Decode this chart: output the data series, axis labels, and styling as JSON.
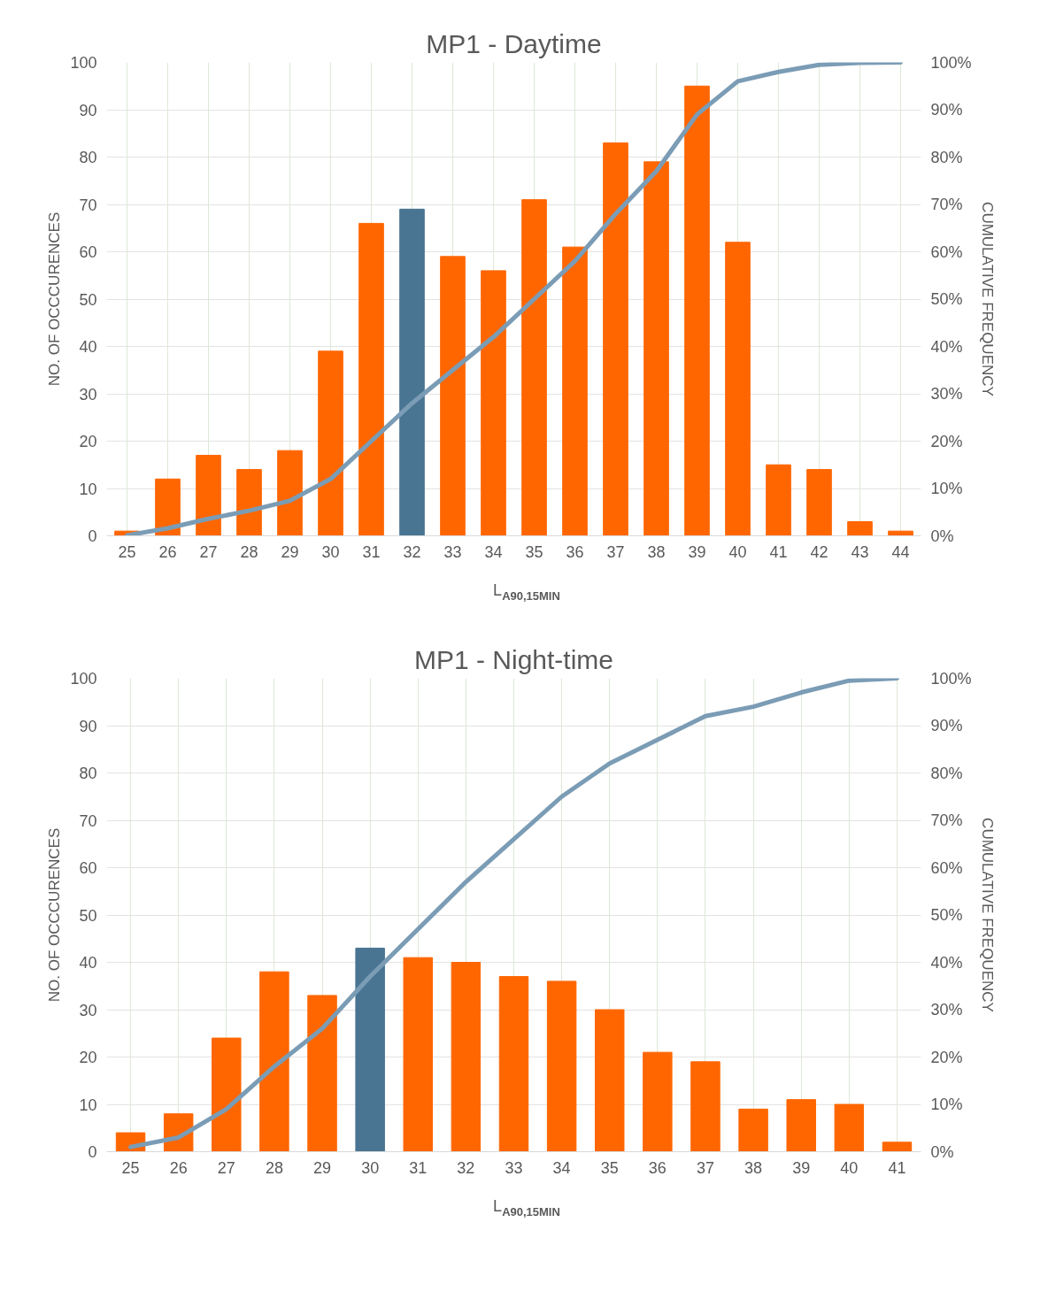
{
  "chart_data": [
    {
      "type": "bar",
      "title": "MP1 - Daytime",
      "xlabel": "L$_{A90,15MIN}$",
      "ylabel": "NO. OF OCCCURENCES",
      "y2label": "CUMULATIVE FREQUENCY",
      "grid": true,
      "categories": [
        "25",
        "26",
        "27",
        "28",
        "29",
        "30",
        "31",
        "32",
        "33",
        "34",
        "35",
        "36",
        "37",
        "38",
        "39",
        "40",
        "41",
        "42",
        "43",
        "44"
      ],
      "ylim": [
        0,
        100
      ],
      "yticks": [
        0,
        10,
        20,
        30,
        40,
        50,
        60,
        70,
        80,
        90,
        100
      ],
      "y2lim": [
        0,
        100
      ],
      "y2ticks": [
        {
          "value": 0,
          "label": "0%"
        },
        {
          "value": 10,
          "label": "10%"
        },
        {
          "value": 20,
          "label": "20%"
        },
        {
          "value": 30,
          "label": "30%"
        },
        {
          "value": 40,
          "label": "40%"
        },
        {
          "value": 50,
          "label": "50%"
        },
        {
          "value": 60,
          "label": "60%"
        },
        {
          "value": 70,
          "label": "70%"
        },
        {
          "value": 80,
          "label": "80%"
        },
        {
          "value": 90,
          "label": "90%"
        },
        {
          "value": 100,
          "label": "100%"
        }
      ],
      "series": [
        {
          "values": [
            1,
            12,
            17,
            14,
            18,
            39,
            66,
            69,
            59,
            56,
            71,
            61,
            83,
            79,
            95,
            62,
            15,
            14,
            3,
            1
          ],
          "colors": [
            "#ff6600",
            "#ff6600",
            "#ff6600",
            "#ff6600",
            "#ff6600",
            "#ff6600",
            "#ff6600",
            "#497593",
            "#ff6600",
            "#ff6600",
            "#ff6600",
            "#ff6600",
            "#ff6600",
            "#ff6600",
            "#ff6600",
            "#ff6600",
            "#ff6600",
            "#ff6600",
            "#ff6600",
            "#ff6600"
          ]
        },
        {
          "type": "line",
          "axis": "y2",
          "color": "#7b9cb5",
          "values": [
            0.1,
            1.6,
            3.6,
            5.3,
            7.4,
            12,
            20,
            28,
            35,
            42,
            50,
            58,
            68,
            77,
            89,
            96,
            98,
            99.5,
            99.9,
            100
          ]
        }
      ]
    },
    {
      "type": "bar",
      "title": "MP1 - Night-time",
      "xlabel": "L$_{A90,15MIN}$",
      "ylabel": "NO. OF OCCCURENCES",
      "y2label": "CUMULATIVE FREQUENCY",
      "grid": true,
      "categories": [
        "25",
        "26",
        "27",
        "28",
        "29",
        "30",
        "31",
        "32",
        "33",
        "34",
        "35",
        "36",
        "37",
        "38",
        "39",
        "40",
        "41"
      ],
      "ylim": [
        0,
        100
      ],
      "yticks": [
        0,
        10,
        20,
        30,
        40,
        50,
        60,
        70,
        80,
        90,
        100
      ],
      "y2lim": [
        0,
        100
      ],
      "y2ticks": [
        {
          "value": 0,
          "label": "0%"
        },
        {
          "value": 10,
          "label": "10%"
        },
        {
          "value": 20,
          "label": "20%"
        },
        {
          "value": 30,
          "label": "30%"
        },
        {
          "value": 40,
          "label": "40%"
        },
        {
          "value": 50,
          "label": "50%"
        },
        {
          "value": 60,
          "label": "60%"
        },
        {
          "value": 70,
          "label": "70%"
        },
        {
          "value": 80,
          "label": "80%"
        },
        {
          "value": 90,
          "label": "90%"
        },
        {
          "value": 100,
          "label": "100%"
        }
      ],
      "series": [
        {
          "values": [
            4,
            8,
            24,
            38,
            33,
            43,
            41,
            40,
            37,
            36,
            30,
            21,
            19,
            9,
            11,
            10,
            2
          ],
          "colors": [
            "#ff6600",
            "#ff6600",
            "#ff6600",
            "#ff6600",
            "#ff6600",
            "#497593",
            "#ff6600",
            "#ff6600",
            "#ff6600",
            "#ff6600",
            "#ff6600",
            "#ff6600",
            "#ff6600",
            "#ff6600",
            "#ff6600",
            "#ff6600",
            "#ff6600"
          ]
        },
        {
          "type": "line",
          "axis": "y2",
          "color": "#7b9cb5",
          "values": [
            1,
            3,
            9,
            18,
            26,
            37,
            47,
            57,
            66,
            75,
            82,
            87,
            92,
            94,
            97,
            99.5,
            100
          ]
        }
      ]
    }
  ]
}
